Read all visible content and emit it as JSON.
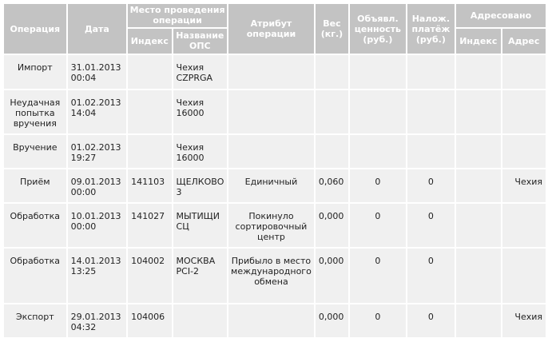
{
  "headers": {
    "operation": "Операция",
    "date": "Дата",
    "place": "Место проведения операции",
    "place_index": "Индекс",
    "place_name": "Название ОПС",
    "attribute": "Атрибут операции",
    "weight": "Вес (кг.)",
    "declared_value": "Объявл. ценность (руб.)",
    "cod": "Налож. платёж (руб.)",
    "addressed": "Адресовано",
    "addressed_index": "Индекс",
    "addressed_address": "Адрес"
  },
  "rows": [
    {
      "operation": "Импорт",
      "date": "31.01.2013 00:04",
      "index": "",
      "name": "Чехия CZPRGA",
      "attribute": "",
      "weight": "",
      "declared": "",
      "cod": "",
      "addr_index": "",
      "addr": ""
    },
    {
      "operation": "Неудачная попытка вручения",
      "date": "01.02.2013 14:04",
      "index": "",
      "name": "Чехия 16000",
      "attribute": "",
      "weight": "",
      "declared": "",
      "cod": "",
      "addr_index": "",
      "addr": ""
    },
    {
      "operation": "Вручение",
      "date": "01.02.2013 19:27",
      "index": "",
      "name": "Чехия 16000",
      "attribute": "",
      "weight": "",
      "declared": "",
      "cod": "",
      "addr_index": "",
      "addr": ""
    },
    {
      "operation": "Приём",
      "date": "09.01.2013 00:00",
      "index": "141103",
      "name": "ЩЕЛКОВО 3",
      "attribute": "Единичный",
      "weight": "0,060",
      "declared": "0",
      "cod": "0",
      "addr_index": "",
      "addr": "Чехия"
    },
    {
      "operation": "Обработка",
      "date": "10.01.2013 00:00",
      "index": "141027",
      "name": "МЫТИЩИ СЦ",
      "attribute": "Покинуло сортировочный центр",
      "weight": "0,000",
      "declared": "0",
      "cod": "0",
      "addr_index": "",
      "addr": ""
    },
    {
      "operation": "Обработка",
      "date": "14.01.2013 13:25",
      "index": "104002",
      "name": "МОСКВА PCI-2",
      "attribute": "Прибыло в место международного обмена",
      "weight": "0,000",
      "declared": "0",
      "cod": "0",
      "addr_index": "",
      "addr": ""
    },
    {
      "operation": "Экспорт",
      "date": "29.01.2013 04:32",
      "index": "104006",
      "name": "",
      "attribute": "",
      "weight": "0,000",
      "declared": "0",
      "cod": "0",
      "addr_index": "",
      "addr": "Чехия"
    }
  ]
}
